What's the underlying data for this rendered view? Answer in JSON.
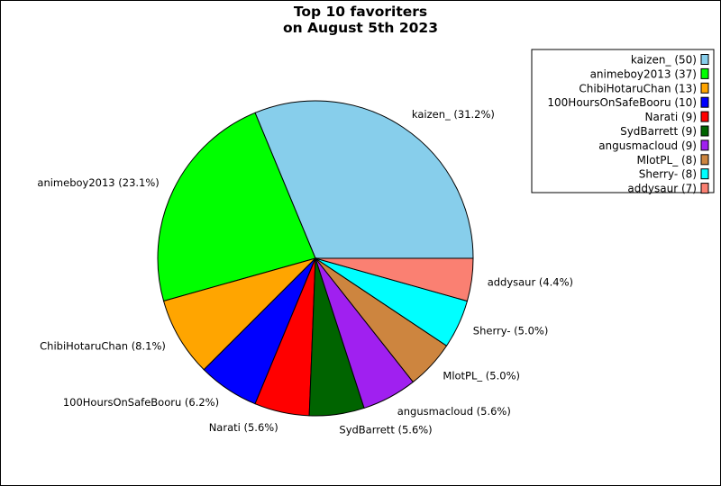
{
  "chart_data": {
    "type": "pie",
    "title": "Top 10 favoriters\non August 5th 2023",
    "slices": [
      {
        "name": "kaizen_",
        "value": 50,
        "percent": "31.2%",
        "color": "#87CEEB"
      },
      {
        "name": "animeboy2013",
        "value": 37,
        "percent": "23.1%",
        "color": "#00FF00"
      },
      {
        "name": "ChibiHotaruChan",
        "value": 13,
        "percent": "8.1%",
        "color": "#FFA500"
      },
      {
        "name": "100HoursOnSafeBooru",
        "value": 10,
        "percent": "6.2%",
        "color": "#0000FF"
      },
      {
        "name": "Narati",
        "value": 9,
        "percent": "5.6%",
        "color": "#FF0000"
      },
      {
        "name": "SydBarrett",
        "value": 9,
        "percent": "5.6%",
        "color": "#006400"
      },
      {
        "name": "angusmacloud",
        "value": 9,
        "percent": "5.6%",
        "color": "#A020F0"
      },
      {
        "name": "MlotPL_",
        "value": 8,
        "percent": "5.0%",
        "color": "#CD853F"
      },
      {
        "name": "Sherry-",
        "value": 8,
        "percent": "5.0%",
        "color": "#00FFFF"
      },
      {
        "name": "addysaur",
        "value": 7,
        "percent": "4.4%",
        "color": "#FA8072"
      }
    ],
    "legend": {
      "placement": "top-right"
    }
  }
}
